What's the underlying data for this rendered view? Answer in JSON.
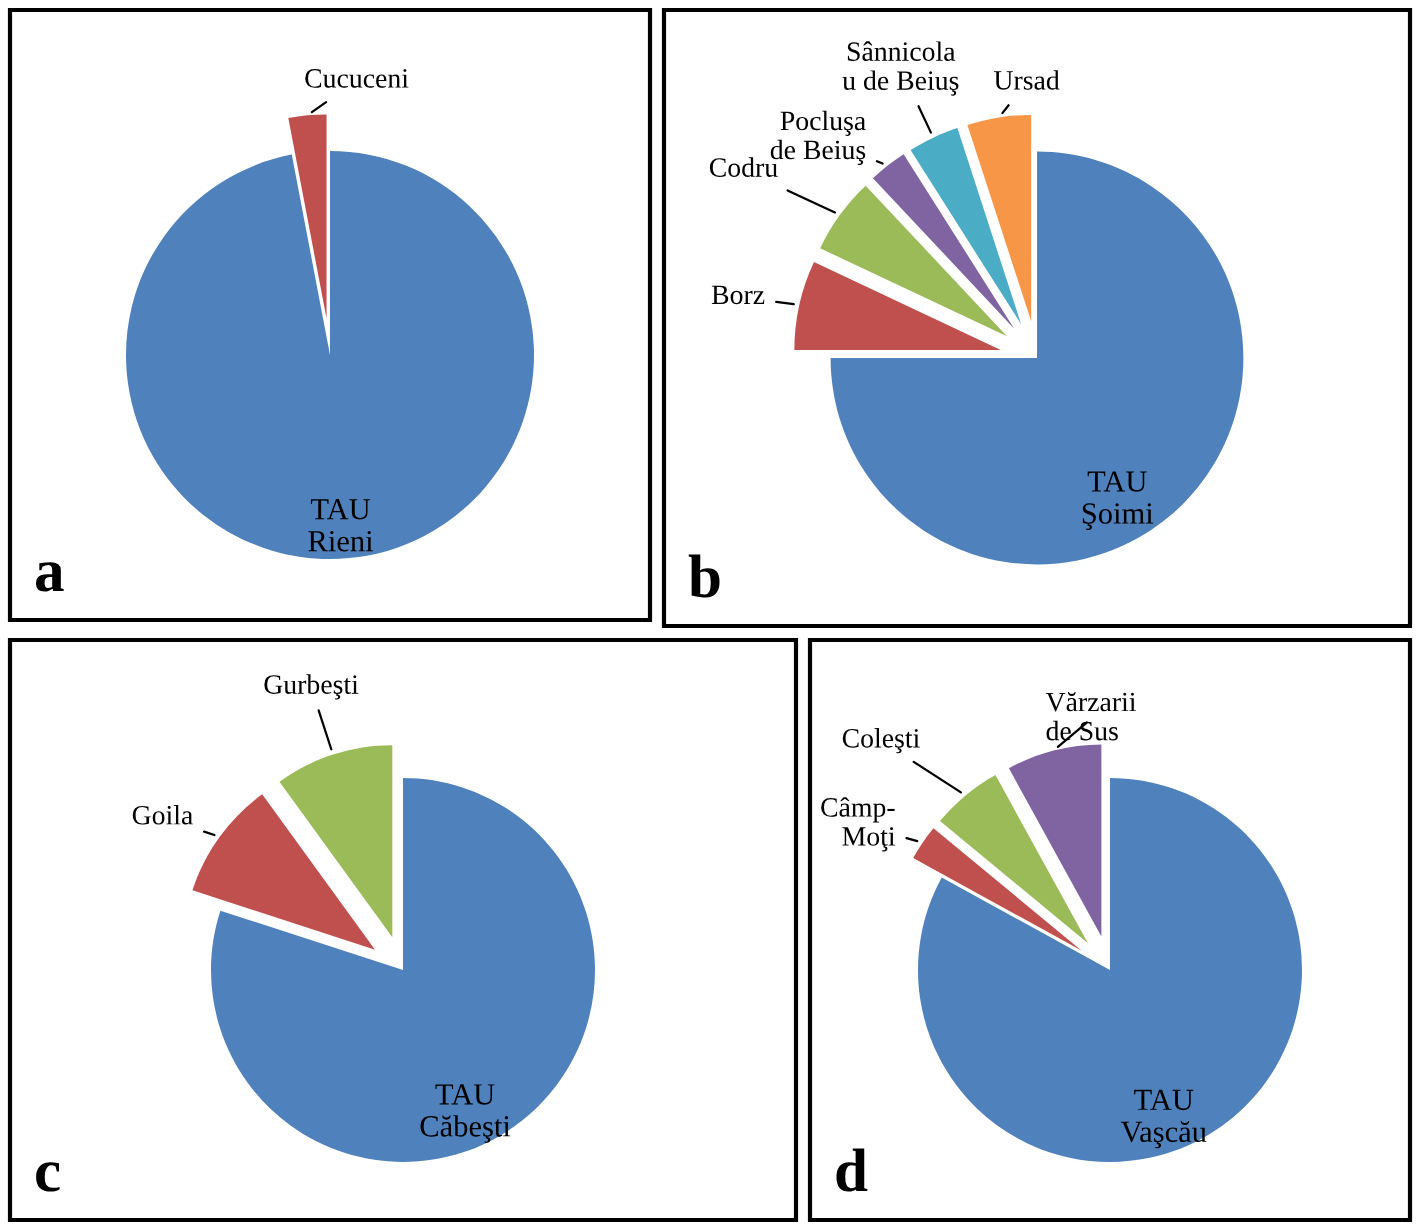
{
  "chart_data": [
    {
      "type": "pie",
      "categories": [
        "TAU\nRieni",
        "Cucuceni"
      ],
      "values": [
        97,
        3
      ],
      "colors": [
        "#4f81bd",
        "#c0504d"
      ],
      "annotations": [
        "a"
      ]
    },
    {
      "type": "pie",
      "categories": [
        "TAU\nŞoimi",
        "Borz",
        "Codru",
        "Pocluşa\nde Beiuş",
        "Sânnicola\nu de Beiuş",
        "Ursad"
      ],
      "values": [
        75,
        7,
        6,
        3,
        4,
        5
      ],
      "colors": [
        "#4f81bd",
        "#c0504d",
        "#9bbb59",
        "#8064a2",
        "#4bacc6",
        "#f79646"
      ],
      "annotations": [
        "b"
      ]
    },
    {
      "type": "pie",
      "categories": [
        "TAU\nCăbeşti",
        "Goila",
        "Gurbeşti"
      ],
      "values": [
        80,
        10,
        10
      ],
      "colors": [
        "#4f81bd",
        "#c0504d",
        "#9bbb59"
      ],
      "annotations": [
        "c"
      ]
    },
    {
      "type": "pie",
      "categories": [
        "TAU\nVaşcău",
        "Câmp-\nMoţi",
        "Coleşti",
        "Vărzarii\nde Sus"
      ],
      "values": [
        83,
        3,
        6,
        8
      ],
      "colors": [
        "#4f81bd",
        "#c0504d",
        "#9bbb59",
        "#8064a2"
      ],
      "annotations": [
        "d"
      ]
    }
  ]
}
